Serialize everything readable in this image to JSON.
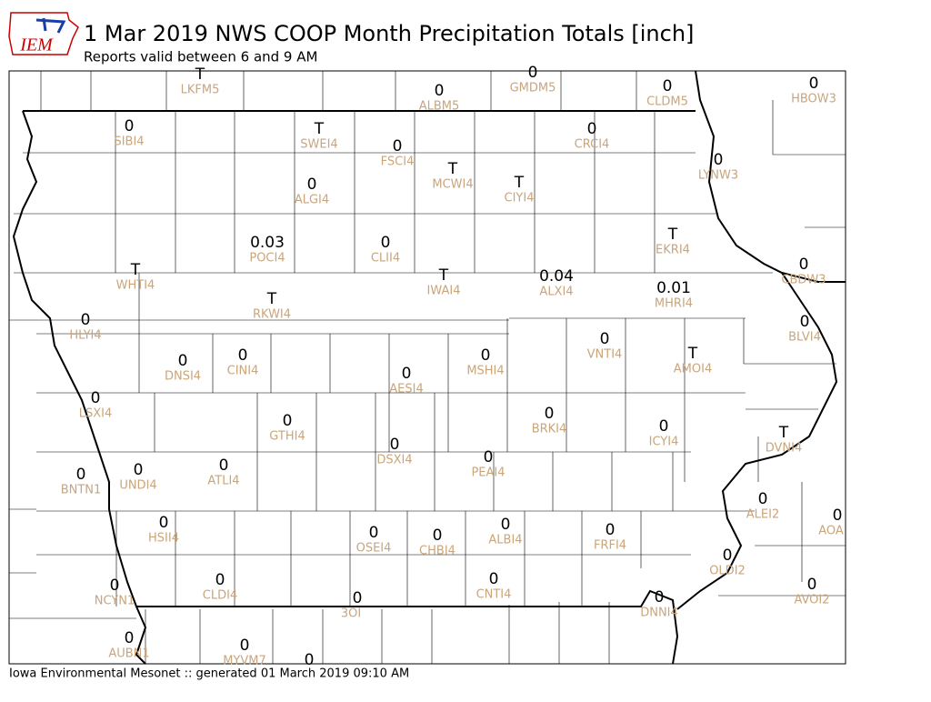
{
  "header": {
    "logo": "IEM",
    "title": "1 Mar 2019 NWS COOP Month Precipitation Totals [inch]",
    "subtitle": "Reports valid between 6 and 9 AM"
  },
  "stations": [
    {
      "value": "T",
      "label": "LKFM5"
    },
    {
      "value": "0",
      "label": "ALBM5"
    },
    {
      "value": "0",
      "label": "GMDM5"
    },
    {
      "value": "0",
      "label": "CLDM5"
    },
    {
      "value": "0",
      "label": "HBOW3"
    },
    {
      "value": "0",
      "label": "SIBI4"
    },
    {
      "value": "T",
      "label": "SWEI4"
    },
    {
      "value": "0",
      "label": "FSCI4"
    },
    {
      "value": "T",
      "label": "MCWI4"
    },
    {
      "value": "T",
      "label": "CIYI4"
    },
    {
      "value": "0",
      "label": "CRCI4"
    },
    {
      "value": "0",
      "label": "LYNW3"
    },
    {
      "value": "0",
      "label": "ALGI4"
    },
    {
      "value": "0.03",
      "label": "POCI4"
    },
    {
      "value": "0",
      "label": "CLII4"
    },
    {
      "value": "T",
      "label": "EKRI4"
    },
    {
      "value": "0",
      "label": "CBDW3"
    },
    {
      "value": "T",
      "label": "WHTI4"
    },
    {
      "value": "T",
      "label": "IWAI4"
    },
    {
      "value": "0.04",
      "label": "ALXI4"
    },
    {
      "value": "0.01",
      "label": "MHRI4"
    },
    {
      "value": "T",
      "label": "RKWI4"
    },
    {
      "value": "0",
      "label": "HLYI4"
    },
    {
      "value": "0",
      "label": "BLVI4"
    },
    {
      "value": "0",
      "label": "VNTI4"
    },
    {
      "value": "T",
      "label": "AMOI4"
    },
    {
      "value": "0",
      "label": "DNSI4"
    },
    {
      "value": "0",
      "label": "CINI4"
    },
    {
      "value": "0",
      "label": "MSHI4"
    },
    {
      "value": "0",
      "label": "AESI4"
    },
    {
      "value": "0",
      "label": "LSXI4"
    },
    {
      "value": "0",
      "label": "BRKI4"
    },
    {
      "value": "0",
      "label": "GTHI4"
    },
    {
      "value": "0",
      "label": "ICYI4"
    },
    {
      "value": "T",
      "label": "DVNI4"
    },
    {
      "value": "0",
      "label": "DSXI4"
    },
    {
      "value": "0",
      "label": "PEAI4"
    },
    {
      "value": "0",
      "label": "ATLI4"
    },
    {
      "value": "0",
      "label": "UNDI4"
    },
    {
      "value": "0",
      "label": "BNTN1"
    },
    {
      "value": "0",
      "label": "ALEI2"
    },
    {
      "value": "0",
      "label": "AOA"
    },
    {
      "value": "0",
      "label": "HSII4"
    },
    {
      "value": "0",
      "label": "OSEI4"
    },
    {
      "value": "0",
      "label": "CHBI4"
    },
    {
      "value": "0",
      "label": "ALBI4"
    },
    {
      "value": "0",
      "label": "FRFI4"
    },
    {
      "value": "0",
      "label": "OLDI2"
    },
    {
      "value": "0",
      "label": "NCYN1"
    },
    {
      "value": "0",
      "label": "CLDI4"
    },
    {
      "value": "0",
      "label": "CNTI4"
    },
    {
      "value": "0",
      "label": "AVOI2"
    },
    {
      "value": "0",
      "label": "3OI"
    },
    {
      "value": "0",
      "label": "DNNI4"
    },
    {
      "value": "0",
      "label": "AUBN1"
    },
    {
      "value": "0",
      "label": "MYVM7"
    },
    {
      "value": "0"
    }
  ],
  "footer": "Iowa Environmental Mesonet :: generated 01 March 2019 09:10 AM"
}
